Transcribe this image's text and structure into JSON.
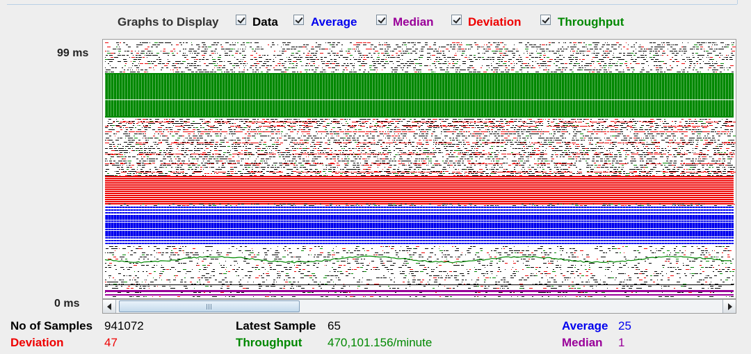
{
  "graphs_toolbar": {
    "title": "Graphs to Display",
    "options": [
      {
        "label": "Data",
        "checked": true,
        "color": "#000000"
      },
      {
        "label": "Average",
        "checked": true,
        "color": "#0000ee"
      },
      {
        "label": "Median",
        "checked": true,
        "color": "#990099"
      },
      {
        "label": "Deviation",
        "checked": true,
        "color": "#ee0000"
      },
      {
        "label": "Throughput",
        "checked": true,
        "color": "#008800"
      }
    ]
  },
  "axis": {
    "y_max_label": "99  ms",
    "y_min_label": "0  ms"
  },
  "colors": {
    "data": "#000000",
    "average": "#0000ee",
    "median": "#990099",
    "deviation": "#ee0000",
    "throughput": "#008800"
  },
  "stats": {
    "samples_label": "No of Samples",
    "samples_value": "941072",
    "latest_label": "Latest Sample",
    "latest_value": "65",
    "average_label": "Average",
    "average_value": "25",
    "deviation_label": "Deviation",
    "deviation_value": "47",
    "throughput_label": "Throughput",
    "throughput_value": "470,101.156/minute",
    "median_label": "Median",
    "median_value": "1"
  },
  "scrollbar": {
    "position": 0.0
  },
  "chart_data": {
    "type": "line",
    "ylim": [
      0,
      99
    ],
    "ylabel": "ms",
    "series": [
      {
        "name": "Data",
        "values": [],
        "color": "#000000"
      },
      {
        "name": "Average",
        "values": [],
        "color": "#0000ee"
      },
      {
        "name": "Median",
        "values": [],
        "color": "#990099"
      },
      {
        "name": "Deviation",
        "values": [],
        "color": "#ee0000"
      },
      {
        "name": "Throughput",
        "values": [],
        "color": "#008800"
      }
    ],
    "grid": false
  }
}
